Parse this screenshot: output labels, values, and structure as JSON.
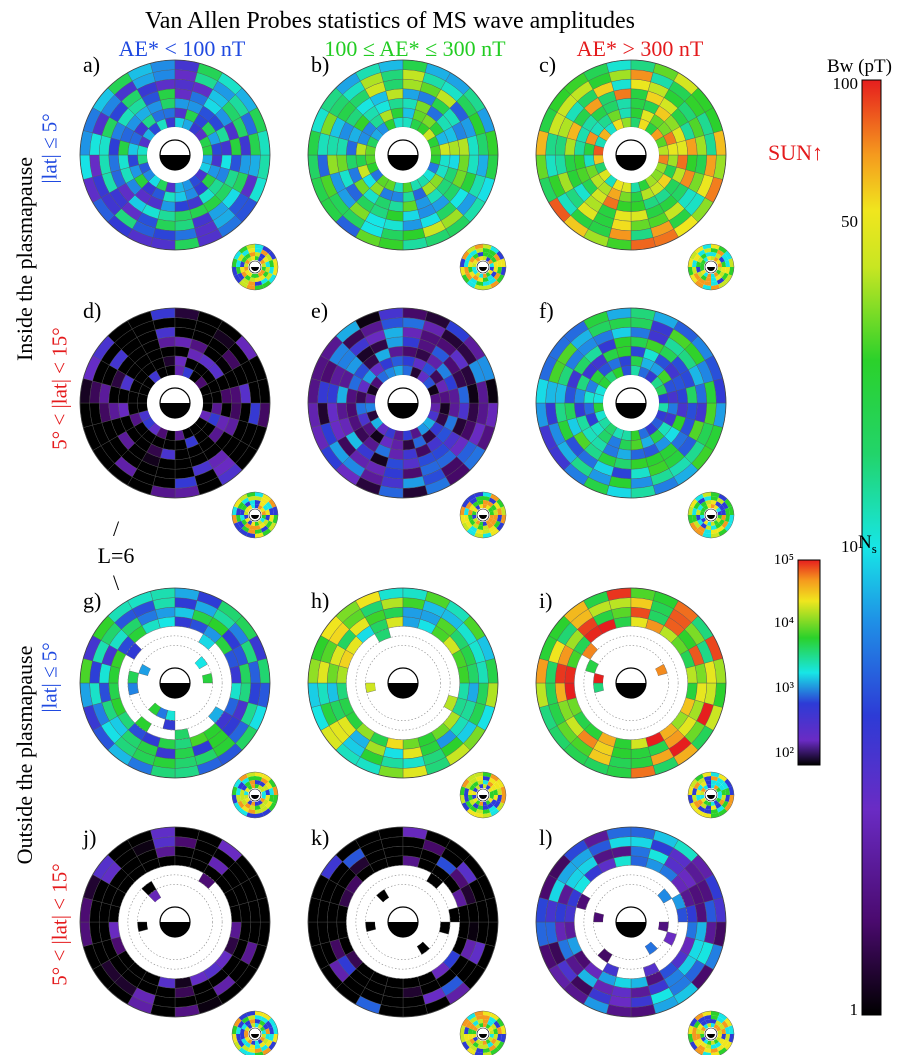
{
  "title": "Van Allen Probes statistics of MS wave amplitudes",
  "columns": [
    {
      "label": "AE* < 100 nT",
      "color": "#1f49e0"
    },
    {
      "label": "100 ≤ AE* ≤ 300 nT",
      "color": "#22cc22"
    },
    {
      "label": "AE* > 300 nT",
      "color": "#e41a1c"
    }
  ],
  "row_groups": [
    {
      "label": "Inside the plasmapause"
    },
    {
      "label": "Outside the plasmapause"
    }
  ],
  "latitude_labels": [
    {
      "label": "|lat| ≤ 5°",
      "color": "#1f49e0"
    },
    {
      "label": "5° < |lat| < 15°",
      "color": "#e41a1c"
    },
    {
      "label": "|lat| ≤ 5°",
      "color": "#1f49e0"
    },
    {
      "label": "5° < |lat| < 15°",
      "color": "#e41a1c"
    }
  ],
  "panel_labels": [
    "a)",
    "b)",
    "c)",
    "d)",
    "e)",
    "f)",
    "g)",
    "h)",
    "i)",
    "j)",
    "k)",
    "l)"
  ],
  "sun_label": "SUN↑",
  "l_marker": {
    "slash": "/",
    "text": "L=6",
    "backslash": "\\"
  },
  "colorbar_bw": {
    "title": "Bw (pT)",
    "ticks": [
      "100",
      "50",
      "10",
      "1"
    ],
    "scale": "log",
    "range": [
      1,
      100
    ]
  },
  "colorbar_ns": {
    "title_main": "N",
    "title_sub": "s",
    "ticks": [
      "10⁵",
      "10⁴",
      "10³",
      "10²"
    ],
    "scale": "log",
    "range": [
      100,
      100000
    ]
  },
  "chart_data": {
    "type": "heatmap",
    "title": "Van Allen Probes statistics of MS wave amplitudes",
    "projection": "polar (L-shell vs MLT), sun at top",
    "grid": {
      "L_bins": 7,
      "MLT_bins": 24
    },
    "colorbar": {
      "label": "Bw (pT)",
      "scale": "log",
      "range": [
        1,
        100
      ]
    },
    "panels": [
      {
        "id": "a",
        "region": "inside plasmapause",
        "lat": "|lat| ≤ 5°",
        "AE": "AE* < 100 nT",
        "typical_Bw": 8,
        "coverage": "full"
      },
      {
        "id": "b",
        "region": "inside plasmapause",
        "lat": "|lat| ≤ 5°",
        "AE": "100 ≤ AE* ≤ 300 nT",
        "typical_Bw": 15,
        "coverage": "full"
      },
      {
        "id": "c",
        "region": "inside plasmapause",
        "lat": "|lat| ≤ 5°",
        "AE": "AE* > 300 nT",
        "typical_Bw": 30,
        "coverage": "full"
      },
      {
        "id": "d",
        "region": "inside plasmapause",
        "lat": "5° < |lat| < 15°",
        "AE": "AE* < 100 nT",
        "typical_Bw": 1.5,
        "coverage": "full"
      },
      {
        "id": "e",
        "region": "inside plasmapause",
        "lat": "5° < |lat| < 15°",
        "AE": "100 ≤ AE* ≤ 300 nT",
        "typical_Bw": 3,
        "coverage": "full"
      },
      {
        "id": "f",
        "region": "inside plasmapause",
        "lat": "5° < |lat| < 15°",
        "AE": "AE* > 300 nT",
        "typical_Bw": 10,
        "coverage": "full"
      },
      {
        "id": "g",
        "region": "outside plasmapause",
        "lat": "|lat| ≤ 5°",
        "AE": "AE* < 100 nT",
        "typical_Bw": 10,
        "coverage": "outer"
      },
      {
        "id": "h",
        "region": "outside plasmapause",
        "lat": "|lat| ≤ 5°",
        "AE": "100 ≤ AE* ≤ 300 nT",
        "typical_Bw": 20,
        "coverage": "outer"
      },
      {
        "id": "i",
        "region": "outside plasmapause",
        "lat": "|lat| ≤ 5°",
        "AE": "AE* > 300 nT",
        "typical_Bw": 40,
        "coverage": "outer"
      },
      {
        "id": "j",
        "region": "outside plasmapause",
        "lat": "5° < |lat| < 15°",
        "AE": "AE* < 100 nT",
        "typical_Bw": 1.2,
        "coverage": "outer"
      },
      {
        "id": "k",
        "region": "outside plasmapause",
        "lat": "5° < |lat| < 15°",
        "AE": "100 ≤ AE* ≤ 300 nT",
        "typical_Bw": 2,
        "coverage": "outer"
      },
      {
        "id": "l",
        "region": "outside plasmapause",
        "lat": "5° < |lat| < 15°",
        "AE": "AE* > 300 nT",
        "typical_Bw": 4,
        "coverage": "outer"
      }
    ]
  }
}
